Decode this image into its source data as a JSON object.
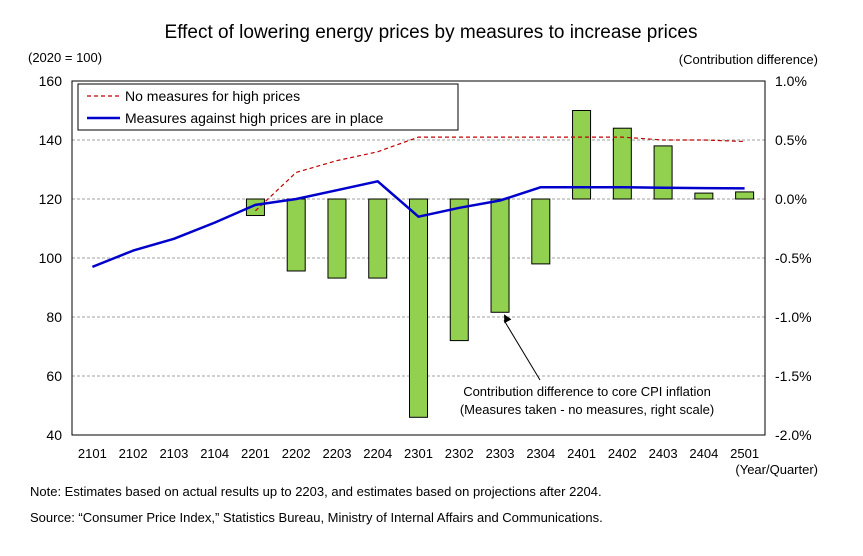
{
  "colors": {
    "bar_fill": "#92D050",
    "bar_stroke": "#000000",
    "solid_line": "#0000CC",
    "dashed_line": "#C00000",
    "grid": "#A0A0A0"
  },
  "notes": {
    "note": "Note: Estimates based on actual results up to 2203, and estimates based on projections after 2204.",
    "source": "Source: “Consumer Price Index,” Statistics Bureau, Ministry of Internal Affairs and Communications."
  },
  "chart_data": {
    "type": "bar",
    "title": "Effect of lowering energy prices by measures to increase prices",
    "left_axis_unit": "(2020 = 100)",
    "right_axis_unit": "(Contribution difference)",
    "xlabel": "(Year/Quarter)",
    "categories": [
      "2101",
      "2102",
      "2103",
      "2104",
      "2201",
      "2202",
      "2203",
      "2204",
      "2301",
      "2302",
      "2303",
      "2304",
      "2401",
      "2402",
      "2403",
      "2404",
      "2501"
    ],
    "ylim_left": [
      40,
      160
    ],
    "yticks_left": [
      "40",
      "60",
      "80",
      "100",
      "120",
      "140",
      "160"
    ],
    "ylim_right": [
      -2.0,
      1.0
    ],
    "yticks_right": [
      "-2.0%",
      "-1.5%",
      "-1.0%",
      "-0.5%",
      "0.0%",
      "0.5%",
      "1.0%"
    ],
    "grid": true,
    "legend_position": "top-left",
    "series": [
      {
        "name": "No measures for high prices",
        "type": "line",
        "style": "dashed",
        "axis": "left",
        "values": [
          null,
          null,
          null,
          null,
          116,
          129,
          133,
          136,
          141,
          141,
          141,
          141,
          141,
          141,
          140,
          140,
          139.5
        ]
      },
      {
        "name": "Measures against high prices are in place",
        "type": "line",
        "style": "solid",
        "axis": "left",
        "values": [
          97,
          102.5,
          106.5,
          112,
          118,
          120,
          123,
          126,
          114,
          117,
          119.5,
          124,
          124,
          124,
          123.8,
          123.7,
          123.6
        ]
      },
      {
        "name": "Contribution difference to core CPI inflation (Measures taken - no measures, right scale)",
        "type": "bar",
        "axis": "right",
        "values": [
          null,
          null,
          null,
          null,
          -0.14,
          -0.61,
          -0.67,
          -0.67,
          -1.85,
          -1.2,
          -0.96,
          -0.55,
          0.75,
          0.6,
          0.45,
          0.05,
          0.06
        ]
      }
    ],
    "annotation": {
      "lines": [
        "Contribution difference to core CPI inflation",
        "(Measures taken - no measures, right scale)"
      ],
      "points_to": "2303"
    }
  }
}
